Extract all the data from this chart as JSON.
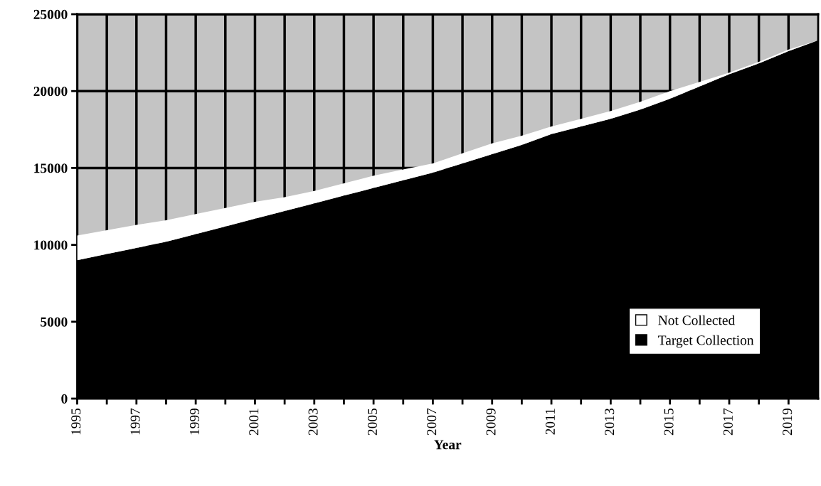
{
  "chart_data": {
    "type": "area",
    "stacked": true,
    "xlabel": "Year",
    "x": [
      1995,
      1996,
      1997,
      1998,
      1999,
      2000,
      2001,
      2002,
      2003,
      2004,
      2005,
      2006,
      2007,
      2008,
      2009,
      2010,
      2011,
      2012,
      2013,
      2014,
      2015,
      2016,
      2017,
      2018,
      2019,
      2020
    ],
    "series": [
      {
        "name": "Target Collection",
        "color": "#000000",
        "values": [
          9000,
          9400,
          9800,
          10200,
          10700,
          11200,
          11700,
          12200,
          12700,
          13200,
          13700,
          14200,
          14700,
          15300,
          15900,
          16500,
          17200,
          17700,
          18200,
          18800,
          19500,
          20300,
          21100,
          21800,
          22600,
          23300
        ]
      },
      {
        "name": "Not Collected",
        "color": "#ffffff",
        "values": [
          1600,
          1550,
          1500,
          1400,
          1300,
          1200,
          1100,
          900,
          800,
          800,
          800,
          700,
          600,
          650,
          700,
          600,
          500,
          500,
          500,
          500,
          500,
          300,
          100,
          100,
          100,
          0
        ]
      }
    ],
    "xlim": [
      1995,
      2020
    ],
    "xticks": [
      1995,
      {
        "value": 1996,
        "label": null
      },
      1997,
      {
        "value": 1998,
        "label": null
      },
      1999,
      {
        "value": 2000,
        "label": null
      },
      2001,
      {
        "value": 2002,
        "label": null
      },
      2003,
      {
        "value": 2004,
        "label": null
      },
      2005,
      {
        "value": 2006,
        "label": null
      },
      2007,
      {
        "value": 2008,
        "label": null
      },
      2009,
      {
        "value": 2010,
        "label": null
      },
      2011,
      {
        "value": 2012,
        "label": null
      },
      2013,
      {
        "value": 2014,
        "label": null
      },
      2015,
      {
        "value": 2016,
        "label": null
      },
      2017,
      {
        "value": 2018,
        "label": null
      },
      2019
    ],
    "ylim": [
      0,
      25000
    ],
    "yticks": [
      0,
      5000,
      10000,
      15000,
      20000,
      25000
    ],
    "grid": true,
    "legend": "lower right"
  }
}
